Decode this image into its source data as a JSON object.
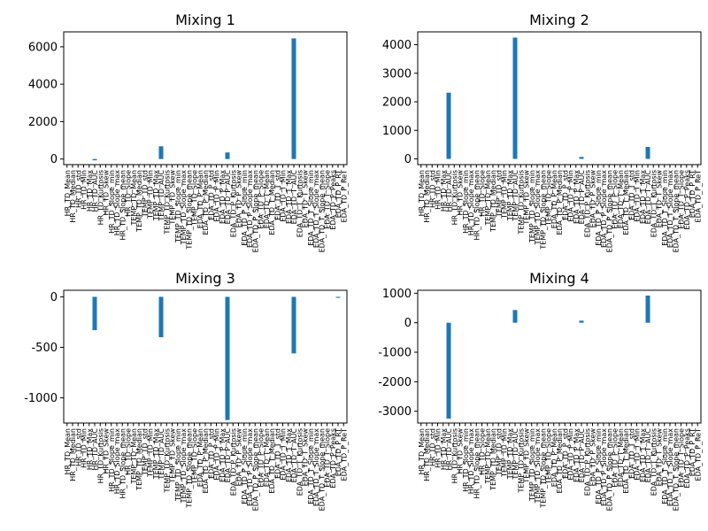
{
  "chart_data": [
    {
      "type": "bar",
      "title": "Mixing 1",
      "ylim": [
        -300,
        6800
      ],
      "yticks": [
        0,
        2000,
        4000,
        6000
      ],
      "bar_color": "#1f77b4",
      "categories": [
        "HR_TD_Mean",
        "HR_TD_Median",
        "HR_TD_std",
        "HR_TD_Min",
        "HR_TD_Max",
        "HR_TD_AUC",
        "HR_TD_Kurtosis",
        "HR_TD_Skew",
        "HR_TD_Slope_min",
        "HR_TD_Slope_max",
        "HR_TD_Slope_mean",
        "HR_TD_Slope",
        "TEMP_TD_Mean",
        "TEMP_TD_Median",
        "TEMP_TD_std",
        "TEMP_TD_Min",
        "TEMP_TD_Max",
        "TEMP_TD_AUC",
        "TEMP_TD_Kurtosis",
        "TEMP_TD_Skew",
        "TEMP_TD_Slope_min",
        "TEMP_TD_Slope_max",
        "TEMP_TD_Slope_mean",
        "TEMP_TD_Slope",
        "EDA_TD_P_Mean",
        "EDA_TD_P_Median",
        "EDA_TD_P_std",
        "EDA_TD_P_Min",
        "EDA_TD_P_Max",
        "EDA_TD_P_AUC",
        "EDA_TD_P_Kurtosis",
        "EDA_TD_P_Skew",
        "EDA_TD_P_Slope_min",
        "EDA_TD_P_Slope_max",
        "EDA_TD_P_Slope_mean",
        "EDA_TD_P_Slope",
        "EDA_TD_T_Mean",
        "EDA_TD_T_Median",
        "EDA_TD_T_std",
        "EDA_TD_T_Min",
        "EDA_TD_T_Max",
        "EDA_TD_T_AUC",
        "EDA_TD_T_Kurtosis",
        "EDA_TD_T_Skew",
        "EDA_TD_T_Slope_min",
        "EDA_TD_T_Slope_max",
        "EDA_TD_T_Slope_mean",
        "EDA_TD_T_Slope",
        "EDA_TD_P_Peaks",
        "EDA_TD_P_RT",
        "EDA_TD_P_ReT"
      ],
      "values": [
        0,
        0,
        0,
        0,
        0,
        -70,
        0,
        0,
        0,
        0,
        0,
        0,
        0,
        0,
        0,
        0,
        0,
        680,
        0,
        0,
        0,
        0,
        0,
        0,
        0,
        0,
        0,
        0,
        0,
        350,
        0,
        0,
        0,
        0,
        0,
        0,
        0,
        0,
        0,
        0,
        0,
        6450,
        0,
        0,
        0,
        0,
        0,
        0,
        0,
        0,
        0
      ]
    },
    {
      "type": "bar",
      "title": "Mixing 2",
      "ylim": [
        -200,
        4450
      ],
      "yticks": [
        0,
        1000,
        2000,
        3000,
        4000
      ],
      "bar_color": "#1f77b4",
      "categories": [
        "HR_TD_Mean",
        "HR_TD_Median",
        "HR_TD_std",
        "HR_TD_Min",
        "HR_TD_Max",
        "HR_TD_AUC",
        "HR_TD_Kurtosis",
        "HR_TD_Skew",
        "HR_TD_Slope_min",
        "HR_TD_Slope_max",
        "HR_TD_Slope_mean",
        "HR_TD_Slope",
        "TEMP_TD_Mean",
        "TEMP_TD_Median",
        "TEMP_TD_std",
        "TEMP_TD_Min",
        "TEMP_TD_Max",
        "TEMP_TD_AUC",
        "TEMP_TD_Kurtosis",
        "TEMP_TD_Skew",
        "TEMP_TD_Slope_min",
        "TEMP_TD_Slope_max",
        "TEMP_TD_Slope_mean",
        "TEMP_TD_Slope",
        "EDA_TD_P_Mean",
        "EDA_TD_P_Median",
        "EDA_TD_P_std",
        "EDA_TD_P_Min",
        "EDA_TD_P_Max",
        "EDA_TD_P_AUC",
        "EDA_TD_P_Kurtosis",
        "EDA_TD_P_Skew",
        "EDA_TD_P_Slope_min",
        "EDA_TD_P_Slope_max",
        "EDA_TD_P_Slope_mean",
        "EDA_TD_P_Slope",
        "EDA_TD_T_Mean",
        "EDA_TD_T_Median",
        "EDA_TD_T_std",
        "EDA_TD_T_Min",
        "EDA_TD_T_Max",
        "EDA_TD_T_AUC",
        "EDA_TD_T_Kurtosis",
        "EDA_TD_T_Skew",
        "EDA_TD_T_Slope_min",
        "EDA_TD_T_Slope_max",
        "EDA_TD_T_Slope_mean",
        "EDA_TD_T_Slope",
        "EDA_TD_P_Peaks",
        "EDA_TD_P_RT",
        "EDA_TD_P_ReT"
      ],
      "values": [
        0,
        0,
        0,
        0,
        0,
        2320,
        0,
        0,
        0,
        0,
        0,
        0,
        0,
        0,
        0,
        0,
        0,
        4250,
        0,
        0,
        0,
        0,
        0,
        0,
        0,
        0,
        0,
        0,
        0,
        70,
        0,
        0,
        0,
        0,
        0,
        0,
        0,
        0,
        0,
        0,
        0,
        420,
        0,
        0,
        0,
        0,
        0,
        0,
        0,
        0,
        0
      ]
    },
    {
      "type": "bar",
      "title": "Mixing 3",
      "ylim": [
        -1250,
        65
      ],
      "yticks": [
        -1000,
        -500,
        0
      ],
      "bar_color": "#1f77b4",
      "categories": [
        "HR_TD_Mean",
        "HR_TD_Median",
        "HR_TD_std",
        "HR_TD_Min",
        "HR_TD_Max",
        "HR_TD_AUC",
        "HR_TD_Kurtosis",
        "HR_TD_Skew",
        "HR_TD_Slope_min",
        "HR_TD_Slope_max",
        "HR_TD_Slope_mean",
        "HR_TD_Slope",
        "TEMP_TD_Mean",
        "TEMP_TD_Median",
        "TEMP_TD_std",
        "TEMP_TD_Min",
        "TEMP_TD_Max",
        "TEMP_TD_AUC",
        "TEMP_TD_Kurtosis",
        "TEMP_TD_Skew",
        "TEMP_TD_Slope_min",
        "TEMP_TD_Slope_max",
        "TEMP_TD_Slope_mean",
        "TEMP_TD_Slope",
        "EDA_TD_P_Mean",
        "EDA_TD_P_Median",
        "EDA_TD_P_std",
        "EDA_TD_P_Min",
        "EDA_TD_P_Max",
        "EDA_TD_P_AUC",
        "EDA_TD_P_Kurtosis",
        "EDA_TD_P_Skew",
        "EDA_TD_P_Slope_min",
        "EDA_TD_P_Slope_max",
        "EDA_TD_P_Slope_mean",
        "EDA_TD_P_Slope",
        "EDA_TD_T_Mean",
        "EDA_TD_T_Median",
        "EDA_TD_T_std",
        "EDA_TD_T_Min",
        "EDA_TD_T_Max",
        "EDA_TD_T_AUC",
        "EDA_TD_T_Kurtosis",
        "EDA_TD_T_Skew",
        "EDA_TD_T_Slope_min",
        "EDA_TD_T_Slope_max",
        "EDA_TD_T_Slope_mean",
        "EDA_TD_T_Slope",
        "EDA_TD_P_Peaks",
        "EDA_TD_P_RT",
        "EDA_TD_P_ReT"
      ],
      "values": [
        0,
        0,
        0,
        0,
        0,
        -330,
        0,
        0,
        0,
        0,
        0,
        0,
        0,
        0,
        0,
        0,
        0,
        -400,
        0,
        0,
        0,
        0,
        0,
        0,
        0,
        0,
        0,
        0,
        0,
        -1220,
        0,
        0,
        0,
        0,
        0,
        0,
        0,
        0,
        0,
        0,
        0,
        -560,
        0,
        0,
        0,
        0,
        0,
        0,
        0,
        -10,
        0
      ]
    },
    {
      "type": "bar",
      "title": "Mixing 4",
      "ylim": [
        -3400,
        1100
      ],
      "yticks": [
        -3000,
        -2000,
        -1000,
        0,
        1000
      ],
      "bar_color": "#1f77b4",
      "categories": [
        "HR_TD_Mean",
        "HR_TD_Median",
        "HR_TD_std",
        "HR_TD_Min",
        "HR_TD_Max",
        "HR_TD_AUC",
        "HR_TD_Kurtosis",
        "HR_TD_Skew",
        "HR_TD_Slope_min",
        "HR_TD_Slope_max",
        "HR_TD_Slope_mean",
        "HR_TD_Slope",
        "TEMP_TD_Mean",
        "TEMP_TD_Median",
        "TEMP_TD_std",
        "TEMP_TD_Min",
        "TEMP_TD_Max",
        "TEMP_TD_AUC",
        "TEMP_TD_Kurtosis",
        "TEMP_TD_Skew",
        "TEMP_TD_Slope_min",
        "TEMP_TD_Slope_max",
        "TEMP_TD_Slope_mean",
        "TEMP_TD_Slope",
        "EDA_TD_P_Mean",
        "EDA_TD_P_Median",
        "EDA_TD_P_std",
        "EDA_TD_P_Min",
        "EDA_TD_P_Max",
        "EDA_TD_P_AUC",
        "EDA_TD_P_Kurtosis",
        "EDA_TD_P_Skew",
        "EDA_TD_P_Slope_min",
        "EDA_TD_P_Slope_max",
        "EDA_TD_P_Slope_mean",
        "EDA_TD_P_Slope",
        "EDA_TD_T_Mean",
        "EDA_TD_T_Median",
        "EDA_TD_T_std",
        "EDA_TD_T_Min",
        "EDA_TD_T_Max",
        "EDA_TD_T_AUC",
        "EDA_TD_T_Kurtosis",
        "EDA_TD_T_Skew",
        "EDA_TD_T_Slope_min",
        "EDA_TD_T_Slope_max",
        "EDA_TD_T_Slope_mean",
        "EDA_TD_T_Slope",
        "EDA_TD_P_Peaks",
        "EDA_TD_P_RT",
        "EDA_TD_P_ReT"
      ],
      "values": [
        0,
        0,
        0,
        0,
        0,
        -3250,
        0,
        0,
        0,
        0,
        0,
        0,
        0,
        0,
        0,
        0,
        0,
        430,
        0,
        0,
        0,
        0,
        0,
        0,
        0,
        0,
        0,
        0,
        0,
        70,
        0,
        0,
        0,
        0,
        0,
        0,
        0,
        0,
        0,
        0,
        0,
        920,
        0,
        0,
        0,
        0,
        0,
        0,
        0,
        0,
        0
      ]
    }
  ]
}
